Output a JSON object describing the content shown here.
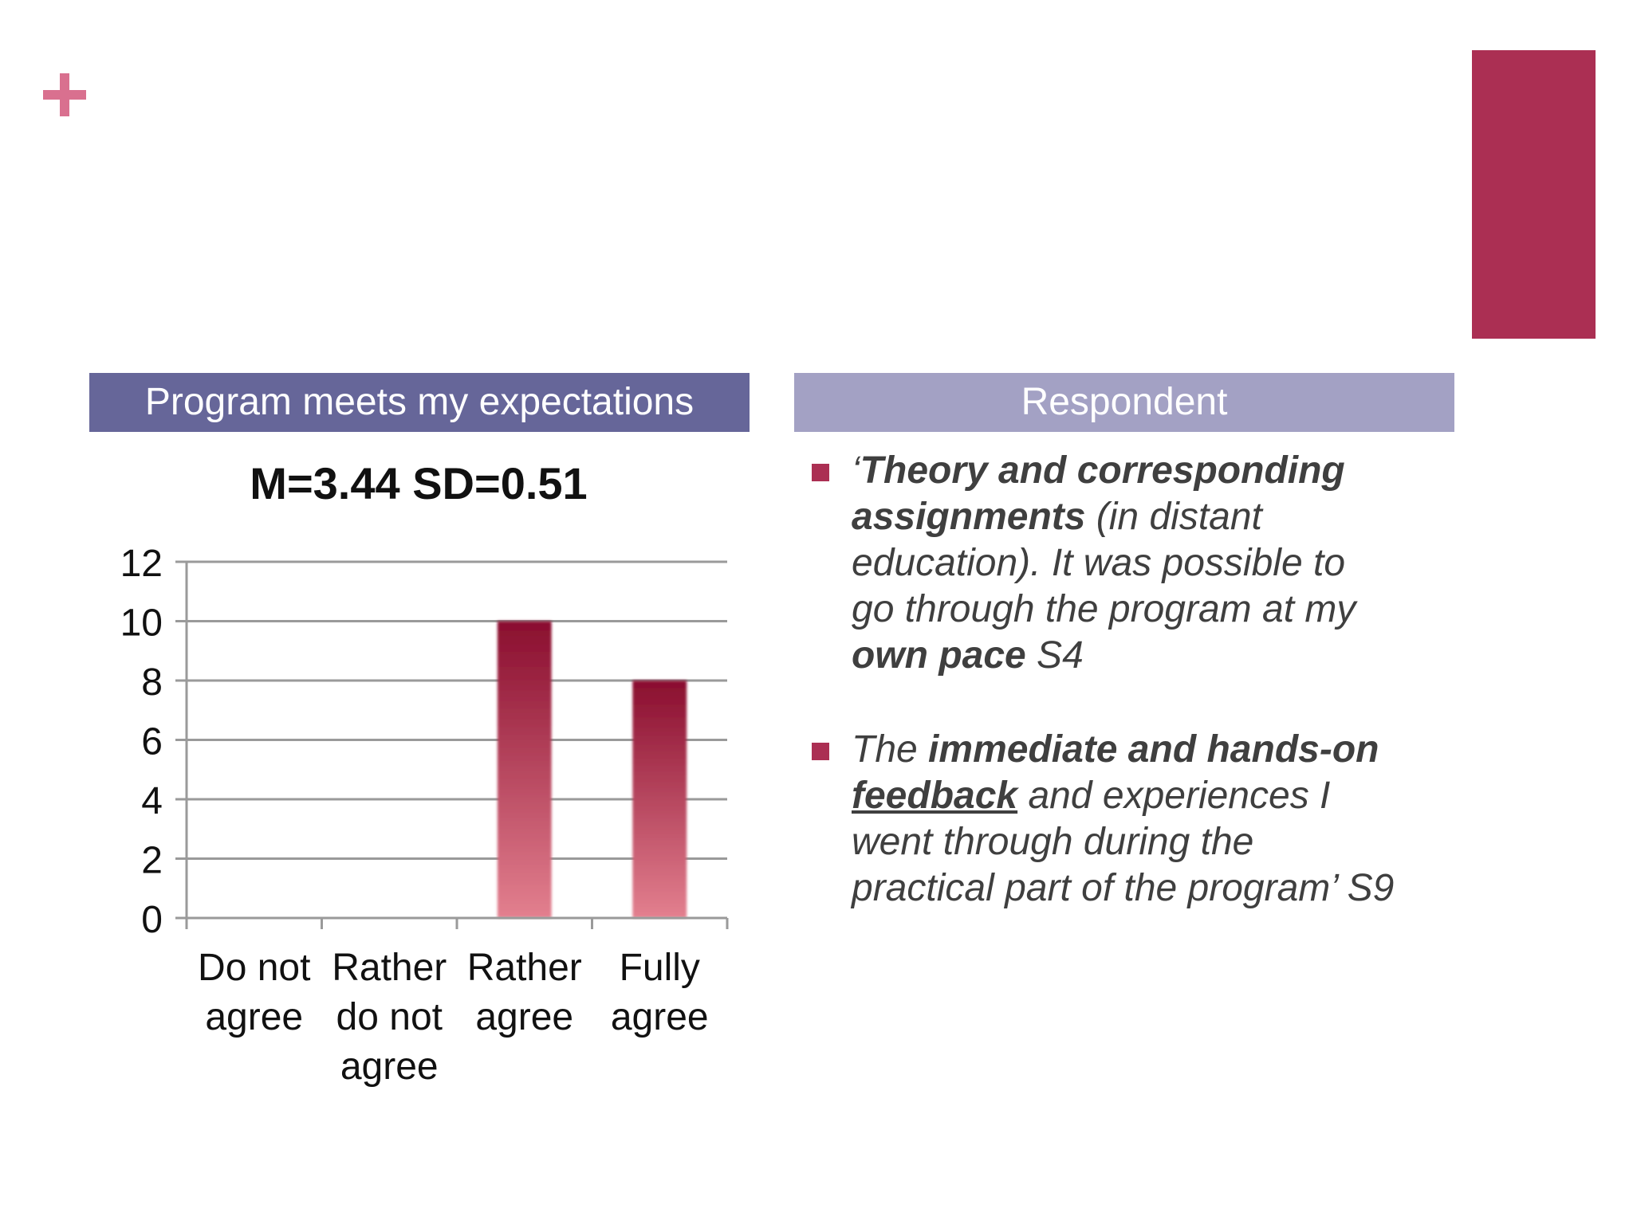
{
  "colors": {
    "accent_bar": "#ab2f53",
    "plus": "#d9708f",
    "header_left": "#666699",
    "header_right": "#a3a1c4",
    "bullet": "#ab2f53",
    "bar_top": "#8a0e2f",
    "bar_bottom": "#e3808f",
    "text": "#3f3f3f",
    "grid": "#9a9a9a"
  },
  "headers": {
    "left": "Program meets my expectations",
    "right": "Respondent"
  },
  "chart_data": {
    "type": "bar",
    "title": "M=3.44 SD=0.51",
    "categories": [
      [
        "Do not",
        "agree"
      ],
      [
        "Rather",
        "do not",
        "agree"
      ],
      [
        "Rather",
        "agree"
      ],
      [
        "Fully",
        "agree"
      ]
    ],
    "values": [
      0,
      0,
      10,
      8
    ],
    "ylim": [
      0,
      12
    ],
    "yticks": [
      "0",
      "2",
      "4",
      "6",
      "8",
      "10",
      "12"
    ],
    "grid": true,
    "xlabel": "",
    "ylabel": ""
  },
  "quotes": [
    {
      "segments": [
        {
          "text": "‘",
          "b": false,
          "u": false
        },
        {
          "text": "Theory and corresponding\nassignments",
          "b": true,
          "u": false
        },
        {
          "text": " (in distant\neducation). It was possible to\ngo through the program at my\n",
          "b": false,
          "u": false
        },
        {
          "text": "own pace",
          "b": true,
          "u": false
        },
        {
          "text": "  S4",
          "b": false,
          "u": false
        }
      ]
    },
    {
      "segments": [
        {
          "text": "The ",
          "b": false,
          "u": false
        },
        {
          "text": "immediate and hands-on\n",
          "b": true,
          "u": false
        },
        {
          "text": "feedback",
          "b": true,
          "u": true
        },
        {
          "text": " and experiences I\nwent through during the\npractical part of the program’ S9",
          "b": false,
          "u": false
        }
      ]
    }
  ]
}
